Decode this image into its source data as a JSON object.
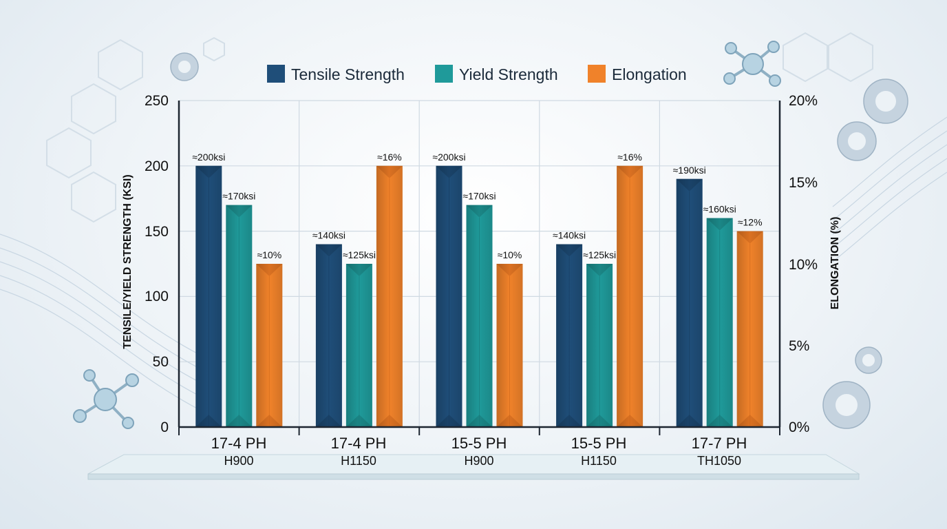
{
  "chart_data": {
    "type": "bar",
    "categories": [
      {
        "line1": "17-4 PH",
        "line2": "H900"
      },
      {
        "line1": "17-4 PH",
        "line2": "H1150"
      },
      {
        "line1": "15-5 PH",
        "line2": "H900"
      },
      {
        "line1": "15-5 PH",
        "line2": "H1150"
      },
      {
        "line1": "17-7 PH",
        "line2": "TH1050"
      }
    ],
    "series": [
      {
        "name": "Tensile Strength",
        "axis": "left",
        "color": "#1f4e79",
        "values": [
          200,
          140,
          200,
          140,
          190
        ],
        "labels": [
          "≈200ksi",
          "≈140ksi",
          "≈200ksi",
          "≈140ksi",
          "≈190ksi"
        ]
      },
      {
        "name": "Yield Strength",
        "axis": "left",
        "color": "#1f9a9a",
        "values": [
          170,
          125,
          170,
          125,
          160
        ],
        "labels": [
          "≈170ksi",
          "≈125ksi",
          "≈170ksi",
          "≈125ksi",
          "≈160ksi"
        ]
      },
      {
        "name": "Elongation",
        "axis": "right",
        "color": "#f0822a",
        "values": [
          10,
          16,
          10,
          16,
          12
        ],
        "labels": [
          "≈10%",
          "≈16%",
          "≈10%",
          "≈16%",
          "≈12%"
        ]
      }
    ],
    "ylabel": "TENSILE/YIELD STRENGTH (KSI)",
    "y2label": "ELONGATION (%)",
    "ylim": [
      0,
      250
    ],
    "y2lim": [
      0,
      20
    ],
    "yticks": [
      "0",
      "50",
      "100",
      "150",
      "200",
      "250"
    ],
    "y2ticks": [
      "0%",
      "5%",
      "10%",
      "15%",
      "20%"
    ],
    "grid": true,
    "legend_position": "top"
  }
}
